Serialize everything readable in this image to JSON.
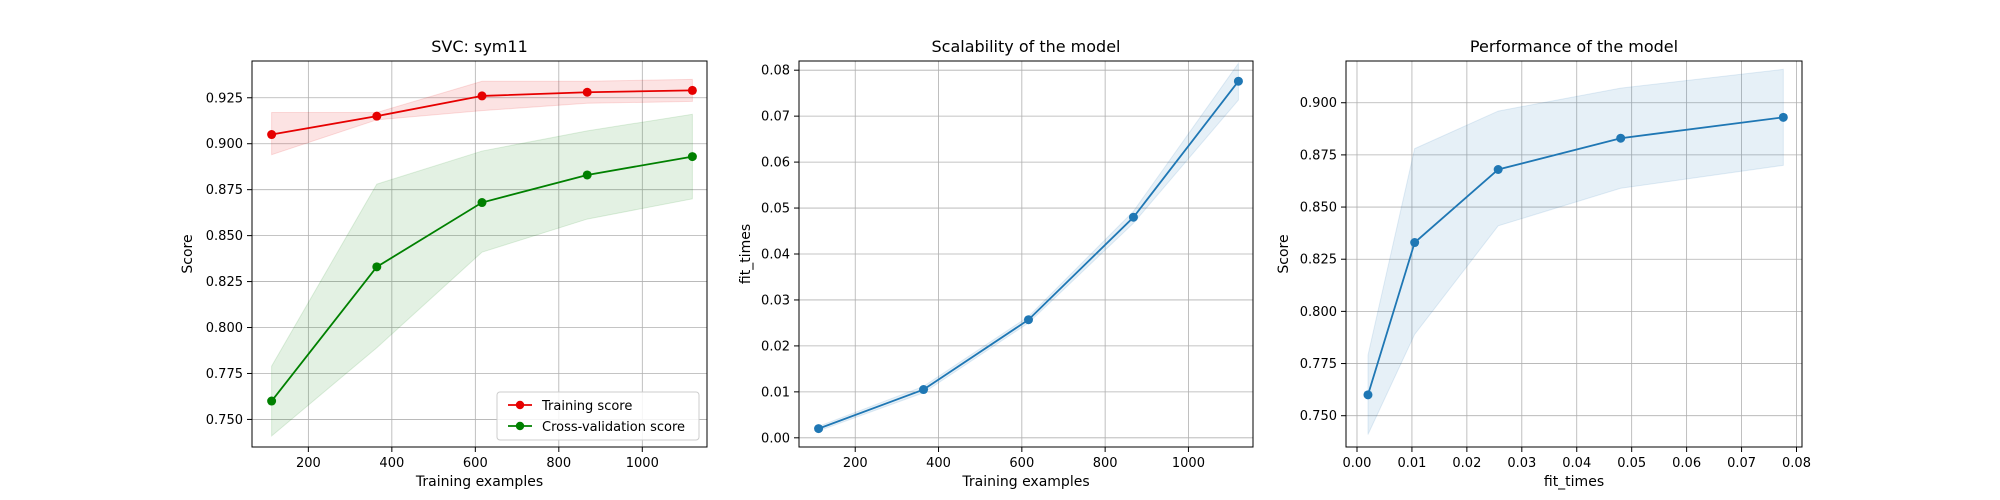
{
  "colors": {
    "training": "#d62728",
    "training_line": "#e60000",
    "cv": "#008000",
    "blue": "#1f77b4",
    "grid": "#b0b0b0"
  },
  "chart_data": [
    {
      "type": "line",
      "title": "SVC: sym11",
      "xlabel": "Training examples",
      "ylabel": "Score",
      "xlim": [
        65,
        1155
      ],
      "ylim": [
        0.735,
        0.945
      ],
      "xticks": [
        200,
        400,
        600,
        800,
        1000
      ],
      "yticks": [
        0.75,
        0.775,
        0.8,
        0.825,
        0.85,
        0.875,
        0.9,
        0.925
      ],
      "ytick_labels": [
        "0.750",
        "0.775",
        "0.800",
        "0.825",
        "0.850",
        "0.875",
        "0.900",
        "0.925"
      ],
      "grid": true,
      "legend": "lower right",
      "x": [
        112,
        364,
        616,
        868,
        1120
      ],
      "series": [
        {
          "name": "Training score",
          "color": "#e60000",
          "values": [
            0.905,
            0.915,
            0.926,
            0.928,
            0.929
          ],
          "band_low": [
            0.894,
            0.913,
            0.918,
            0.922,
            0.923
          ],
          "band_high": [
            0.917,
            0.917,
            0.934,
            0.934,
            0.935
          ]
        },
        {
          "name": "Cross-validation score",
          "color": "#008000",
          "values": [
            0.76,
            0.833,
            0.868,
            0.883,
            0.893
          ],
          "band_low": [
            0.741,
            0.789,
            0.841,
            0.859,
            0.87
          ],
          "band_high": [
            0.779,
            0.878,
            0.896,
            0.907,
            0.916
          ]
        }
      ]
    },
    {
      "type": "line",
      "title": "Scalability of the model",
      "xlabel": "Training examples",
      "ylabel": "fit_times",
      "xlim": [
        65,
        1155
      ],
      "ylim": [
        -0.002,
        0.082
      ],
      "xticks": [
        200,
        400,
        600,
        800,
        1000
      ],
      "yticks": [
        0,
        0.01,
        0.02,
        0.03,
        0.04,
        0.05,
        0.06,
        0.07,
        0.08
      ],
      "ytick_labels": [
        "0.00",
        "0.01",
        "0.02",
        "0.03",
        "0.04",
        "0.05",
        "0.06",
        "0.07",
        "0.08"
      ],
      "grid": true,
      "x": [
        112,
        364,
        616,
        868,
        1120
      ],
      "series": [
        {
          "color": "#1f77b4",
          "values": [
            0.002,
            0.0105,
            0.0257,
            0.048,
            0.0776
          ],
          "band_low": [
            0.0015,
            0.0098,
            0.025,
            0.0467,
            0.0735
          ],
          "band_high": [
            0.0025,
            0.0112,
            0.0264,
            0.0493,
            0.0815
          ]
        }
      ]
    },
    {
      "type": "line",
      "title": "Performance of the model",
      "xlabel": "fit_times",
      "ylabel": "Score",
      "xlim": [
        -0.002,
        0.081
      ],
      "ylim": [
        0.735,
        0.92
      ],
      "xticks": [
        0,
        0.01,
        0.02,
        0.03,
        0.04,
        0.05,
        0.06,
        0.07,
        0.08
      ],
      "xtick_labels": [
        "0.00",
        "0.01",
        "0.02",
        "0.03",
        "0.04",
        "0.05",
        "0.06",
        "0.07",
        "0.08"
      ],
      "yticks": [
        0.75,
        0.775,
        0.8,
        0.825,
        0.85,
        0.875,
        0.9
      ],
      "ytick_labels": [
        "0.750",
        "0.775",
        "0.800",
        "0.825",
        "0.850",
        "0.875",
        "0.900"
      ],
      "grid": true,
      "x": [
        0.002,
        0.0105,
        0.0257,
        0.048,
        0.0776
      ],
      "series": [
        {
          "color": "#1f77b4",
          "values": [
            0.76,
            0.833,
            0.868,
            0.883,
            0.893
          ],
          "band_low": [
            0.741,
            0.789,
            0.841,
            0.859,
            0.87
          ],
          "band_high": [
            0.779,
            0.878,
            0.896,
            0.907,
            0.916
          ]
        }
      ]
    }
  ]
}
